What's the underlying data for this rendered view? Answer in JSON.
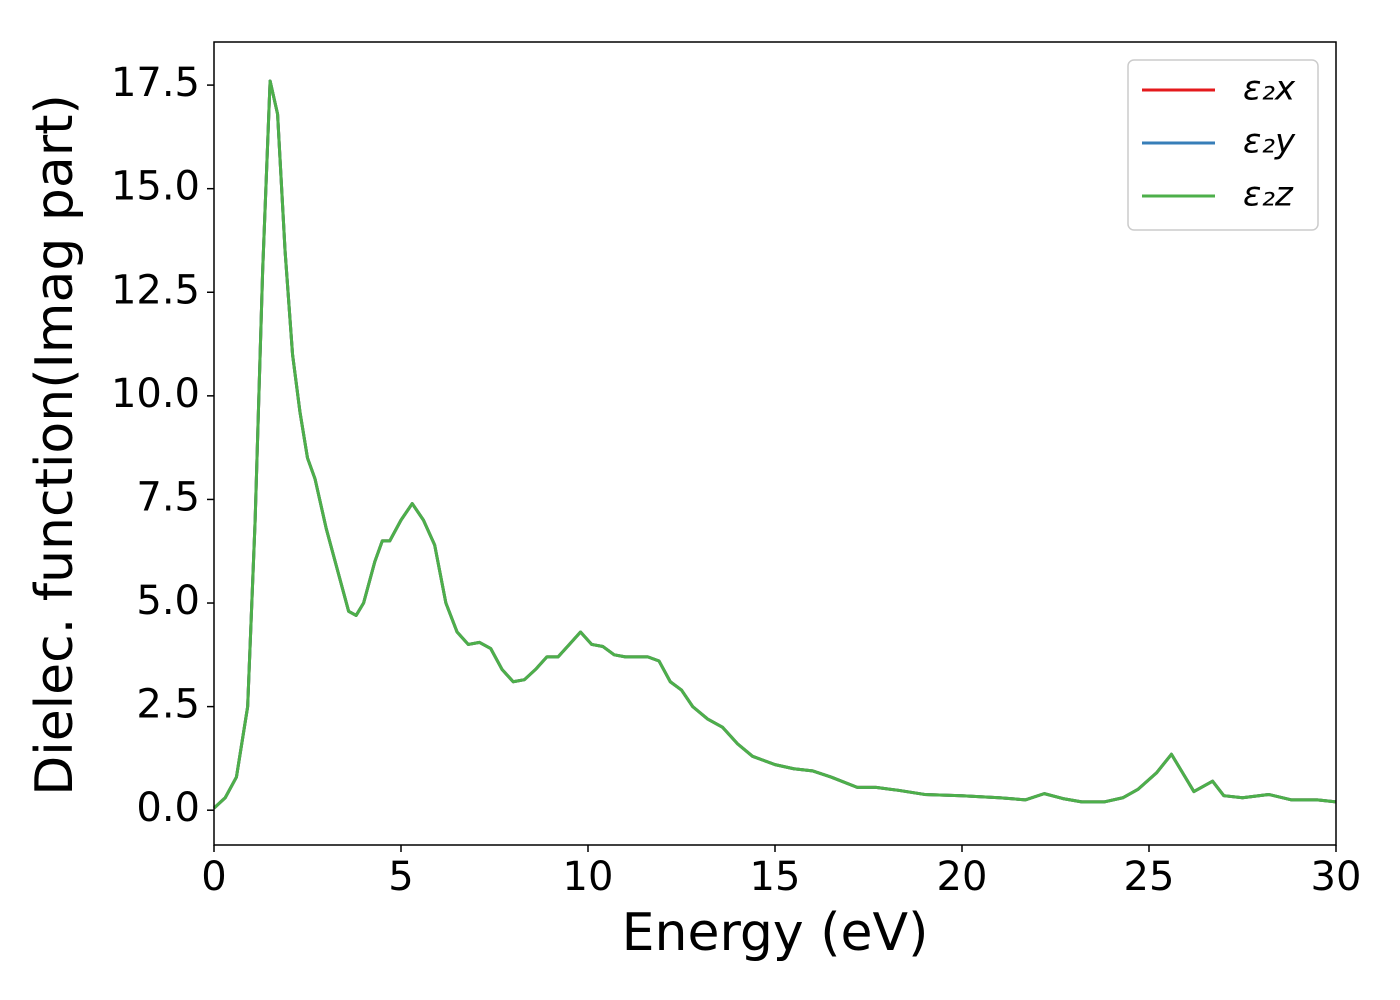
{
  "chart_data": {
    "type": "line",
    "xlabel": "Energy (eV)",
    "ylabel": "Dielec. function(Imag part)",
    "x": [
      0,
      0.3,
      0.6,
      0.9,
      1.1,
      1.3,
      1.5,
      1.7,
      1.9,
      2.1,
      2.3,
      2.5,
      2.7,
      3.0,
      3.3,
      3.6,
      3.8,
      4.0,
      4.3,
      4.5,
      4.7,
      5.0,
      5.3,
      5.6,
      5.9,
      6.2,
      6.5,
      6.8,
      7.1,
      7.4,
      7.7,
      8.0,
      8.3,
      8.6,
      8.9,
      9.2,
      9.5,
      9.8,
      10.1,
      10.4,
      10.7,
      11.0,
      11.3,
      11.6,
      11.9,
      12.2,
      12.5,
      12.8,
      13.2,
      13.6,
      14.0,
      14.4,
      15.0,
      15.5,
      16.0,
      16.5,
      17.2,
      17.7,
      18.3,
      19.0,
      20.0,
      21.0,
      21.7,
      22.2,
      22.7,
      23.2,
      23.8,
      24.3,
      24.7,
      25.2,
      25.6,
      25.9,
      26.2,
      26.7,
      27.0,
      27.5,
      28.2,
      28.8,
      29.5,
      30
    ],
    "series": [
      {
        "name": "ε₂x",
        "color": "#e41a1c",
        "values": [
          0.05,
          0.3,
          0.8,
          2.5,
          7,
          13,
          17.6,
          16.8,
          13.5,
          11,
          9.6,
          8.5,
          8,
          6.8,
          5.8,
          4.8,
          4.7,
          5.0,
          6.0,
          6.5,
          6.5,
          7.0,
          7.4,
          7.0,
          6.4,
          5.0,
          4.3,
          4.0,
          4.05,
          3.9,
          3.4,
          3.1,
          3.15,
          3.4,
          3.7,
          3.7,
          4.0,
          4.3,
          4.0,
          3.95,
          3.75,
          3.7,
          3.7,
          3.7,
          3.6,
          3.1,
          2.9,
          2.5,
          2.2,
          2.0,
          1.6,
          1.3,
          1.1,
          1.0,
          0.95,
          0.8,
          0.55,
          0.55,
          0.48,
          0.38,
          0.35,
          0.3,
          0.25,
          0.4,
          0.28,
          0.2,
          0.2,
          0.3,
          0.5,
          0.9,
          1.35,
          0.9,
          0.45,
          0.7,
          0.35,
          0.3,
          0.38,
          0.25,
          0.25,
          0.2
        ]
      },
      {
        "name": "ε₂y",
        "color": "#377eb8",
        "values": [
          0.05,
          0.3,
          0.8,
          2.5,
          7,
          13,
          17.6,
          16.8,
          13.5,
          11,
          9.6,
          8.5,
          8,
          6.8,
          5.8,
          4.8,
          4.7,
          5.0,
          6.0,
          6.5,
          6.5,
          7.0,
          7.4,
          7.0,
          6.4,
          5.0,
          4.3,
          4.0,
          4.05,
          3.9,
          3.4,
          3.1,
          3.15,
          3.4,
          3.7,
          3.7,
          4.0,
          4.3,
          4.0,
          3.95,
          3.75,
          3.7,
          3.7,
          3.7,
          3.6,
          3.1,
          2.9,
          2.5,
          2.2,
          2.0,
          1.6,
          1.3,
          1.1,
          1.0,
          0.95,
          0.8,
          0.55,
          0.55,
          0.48,
          0.38,
          0.35,
          0.3,
          0.25,
          0.4,
          0.28,
          0.2,
          0.2,
          0.3,
          0.5,
          0.9,
          1.35,
          0.9,
          0.45,
          0.7,
          0.35,
          0.3,
          0.38,
          0.25,
          0.25,
          0.2
        ]
      },
      {
        "name": "ε₂z",
        "color": "#4daf4a",
        "values": [
          0.05,
          0.3,
          0.8,
          2.5,
          7,
          13,
          17.6,
          16.8,
          13.5,
          11,
          9.6,
          8.5,
          8,
          6.8,
          5.8,
          4.8,
          4.7,
          5.0,
          6.0,
          6.5,
          6.5,
          7.0,
          7.4,
          7.0,
          6.4,
          5.0,
          4.3,
          4.0,
          4.05,
          3.9,
          3.4,
          3.1,
          3.15,
          3.4,
          3.7,
          3.7,
          4.0,
          4.3,
          4.0,
          3.95,
          3.75,
          3.7,
          3.7,
          3.7,
          3.6,
          3.1,
          2.9,
          2.5,
          2.2,
          2.0,
          1.6,
          1.3,
          1.1,
          1.0,
          0.95,
          0.8,
          0.55,
          0.55,
          0.48,
          0.38,
          0.35,
          0.3,
          0.25,
          0.4,
          0.28,
          0.2,
          0.2,
          0.3,
          0.5,
          0.9,
          1.35,
          0.9,
          0.45,
          0.7,
          0.35,
          0.3,
          0.38,
          0.25,
          0.25,
          0.2
        ]
      }
    ],
    "xlim": [
      0,
      30
    ],
    "xticks": [
      0,
      5,
      10,
      15,
      20,
      25,
      30
    ],
    "ylim": [
      -0.84,
      18.54
    ],
    "yticks": [
      {
        "value": 0,
        "label": "0.0"
      },
      2.5,
      {
        "value": 5,
        "label": "5.0"
      },
      7.5,
      {
        "value": 10,
        "label": "10.0"
      },
      12.5,
      {
        "value": 15,
        "label": "15.0"
      },
      17.5
    ],
    "grid": false,
    "legend": "upper right"
  }
}
